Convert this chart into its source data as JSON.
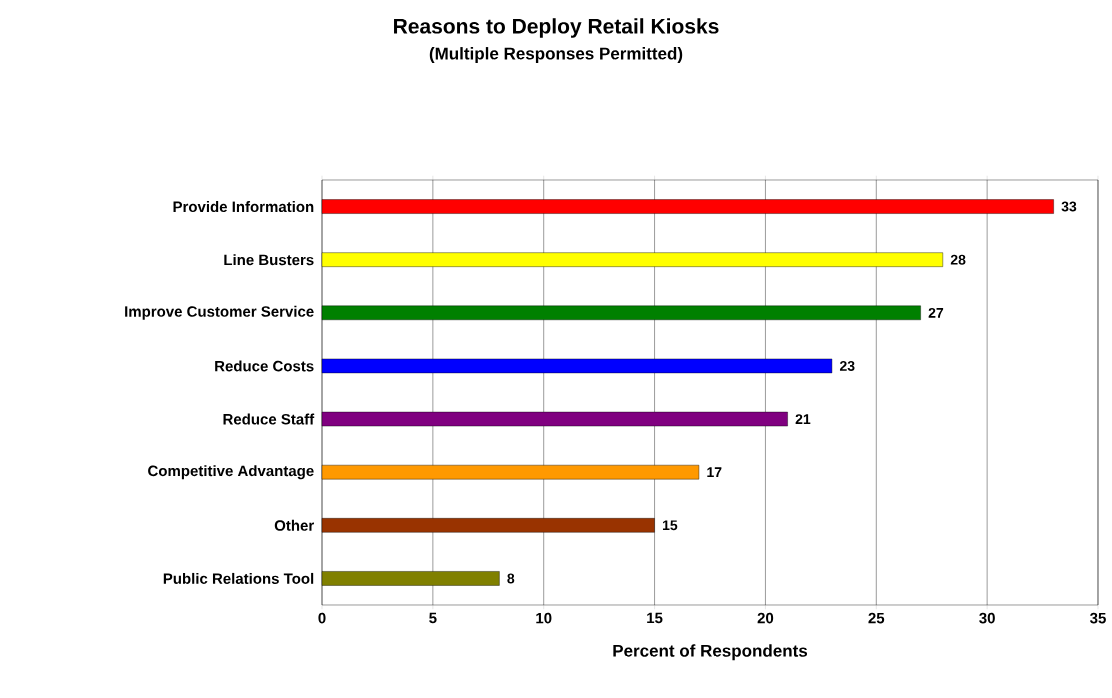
{
  "chart_data": {
    "type": "bar",
    "orientation": "horizontal",
    "title": "Reasons to Deploy Retail Kiosks",
    "subtitle": "(Multiple Responses Permitted)",
    "xlabel": "Percent of Respondents",
    "categories": [
      "Provide Information",
      "Line Busters",
      "Improve Customer Service",
      "Reduce Costs",
      "Reduce Staff",
      "Competitive Advantage",
      "Other",
      "Public Relations Tool"
    ],
    "values": [
      33,
      28,
      27,
      23,
      21,
      17,
      15,
      8
    ],
    "colors": [
      "#ff0000",
      "#ffff00",
      "#008000",
      "#0000ff",
      "#800080",
      "#ff9900",
      "#993300",
      "#808000"
    ],
    "xlim": [
      0,
      35
    ],
    "xticks": [
      0,
      5,
      10,
      15,
      20,
      25,
      30,
      35
    ],
    "grid": "x",
    "data_labels": true
  }
}
